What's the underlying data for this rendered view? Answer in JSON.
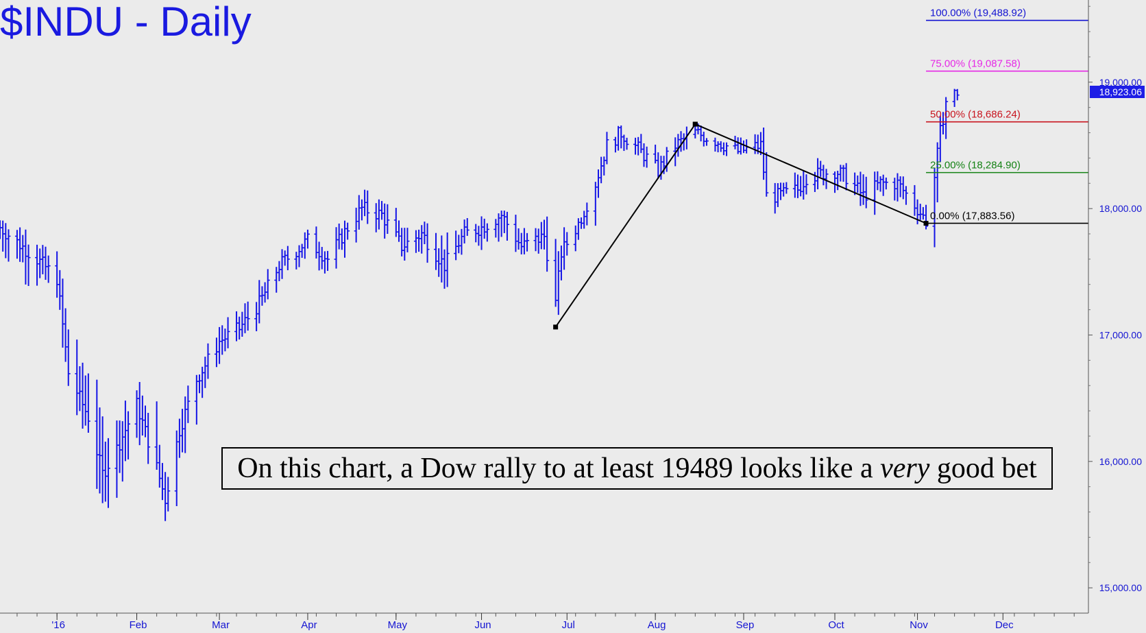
{
  "title": "$INDU - Daily",
  "annotation": {
    "before": "On this chart, a Dow rally to at least 19489 looks like a ",
    "emphasis": "very",
    "after": " good bet"
  },
  "last_price_label": "18,923.06",
  "chart_data": {
    "type": "bar",
    "subtype": "ohlc",
    "title": "$INDU - Daily",
    "xlabel": "",
    "ylabel": "",
    "ylim": [
      14800,
      19650
    ],
    "yticks": [
      "15,000.00",
      "16,000.00",
      "17,000.00",
      "18,000.00",
      "19,000.00"
    ],
    "ytick_values": [
      15000,
      16000,
      17000,
      18000,
      19000
    ],
    "xticks": [
      "'16",
      "Feb",
      "Mar",
      "Apr",
      "May",
      "Jun",
      "Jul",
      "Aug",
      "Sep",
      "Oct",
      "Nov",
      "Dec"
    ],
    "xtick_dates": [
      "2016-01-04",
      "2016-02-01",
      "2016-03-01",
      "2016-04-01",
      "2016-05-02",
      "2016-06-01",
      "2016-07-01",
      "2016-08-01",
      "2016-09-01",
      "2016-10-03",
      "2016-11-01",
      "2016-12-01"
    ],
    "xlim": [
      "2015-12-15",
      "2016-12-31"
    ],
    "series": [
      {
        "dates": [
          "2015-12-15",
          "2015-12-28",
          "2016-01-04",
          "2016-01-08",
          "2016-01-15",
          "2016-01-20",
          "2016-01-25",
          "2016-02-01",
          "2016-02-08",
          "2016-02-11",
          "2016-02-16",
          "2016-02-22",
          "2016-03-01",
          "2016-03-08",
          "2016-03-15",
          "2016-03-22",
          "2016-04-01",
          "2016-04-08",
          "2016-04-15",
          "2016-04-20",
          "2016-04-27",
          "2016-05-04",
          "2016-05-11",
          "2016-05-19",
          "2016-05-26",
          "2016-06-01",
          "2016-06-08",
          "2016-06-15",
          "2016-06-23",
          "2016-06-27",
          "2016-06-29",
          "2016-07-05",
          "2016-07-11",
          "2016-07-15",
          "2016-07-20",
          "2016-07-27",
          "2016-08-02",
          "2016-08-08",
          "2016-08-15",
          "2016-08-22",
          "2016-08-30",
          "2016-09-07",
          "2016-09-09",
          "2016-09-13",
          "2016-09-20",
          "2016-09-23",
          "2016-10-03",
          "2016-10-07",
          "2016-10-13",
          "2016-10-19",
          "2016-10-25",
          "2016-11-01",
          "2016-11-04",
          "2016-11-07",
          "2016-11-09",
          "2016-11-11",
          "2016-11-15"
        ],
        "close": [
          17850,
          17600,
          17450,
          16700,
          16350,
          15900,
          16100,
          16450,
          15950,
          15700,
          16250,
          16650,
          16950,
          17050,
          17250,
          17550,
          17750,
          17600,
          17850,
          18000,
          17950,
          17700,
          17800,
          17550,
          17800,
          17850,
          17950,
          17700,
          17780,
          17250,
          17650,
          17880,
          18200,
          18500,
          18600,
          18450,
          18300,
          18500,
          18600,
          18540,
          18450,
          18500,
          18100,
          18100,
          18150,
          18250,
          18300,
          18250,
          18100,
          18200,
          18200,
          18000,
          17900,
          18250,
          18600,
          18850,
          18923.06
        ],
        "high": [
          17950,
          17800,
          17600,
          17100,
          16800,
          16400,
          16550,
          16600,
          16450,
          16000,
          16500,
          16800,
          17100,
          17200,
          17450,
          17650,
          17850,
          17750,
          17950,
          18170,
          18100,
          17900,
          17950,
          17800,
          17900,
          18000,
          18020,
          17850,
          18000,
          17500,
          17850,
          17950,
          18300,
          18600,
          18630,
          18550,
          18400,
          18620,
          18660,
          18600,
          18550,
          18600,
          18300,
          18200,
          18300,
          18450,
          18350,
          18330,
          18300,
          18280,
          18280,
          18100,
          18050,
          18350,
          18800,
          18930,
          18940
        ],
        "low": [
          17600,
          17300,
          17200,
          16400,
          16100,
          15450,
          15800,
          16100,
          15800,
          15500,
          16000,
          16400,
          16800,
          16950,
          17050,
          17400,
          17600,
          17450,
          17700,
          17850,
          17800,
          17600,
          17600,
          17350,
          17650,
          17700,
          17750,
          17550,
          17600,
          17100,
          17500,
          17800,
          18050,
          18400,
          18450,
          18350,
          18250,
          18350,
          18500,
          18450,
          18400,
          18420,
          18000,
          17980,
          18050,
          18150,
          18150,
          18100,
          17950,
          18050,
          18050,
          17900,
          17850,
          18000,
          18300,
          18700,
          18850
        ]
      }
    ],
    "trend_lines": [
      {
        "from": {
          "date": "2016-06-27",
          "value": 17063
        },
        "to": {
          "date": "2016-08-15",
          "value": 18668
        }
      },
      {
        "from": {
          "date": "2016-08-15",
          "value": 18668
        },
        "to": {
          "date": "2016-11-04",
          "value": 17883.56
        }
      }
    ],
    "fib_levels": [
      {
        "label": "100.00% (19,488.92)",
        "value": 19488.92,
        "color": "#1414d2"
      },
      {
        "label": "75.00% (19,087.58)",
        "value": 19087.58,
        "color": "#e629e6"
      },
      {
        "label": "50.00% (18,686.24)",
        "value": 18686.24,
        "color": "#c8141e"
      },
      {
        "label": "25.00% (18,284.90)",
        "value": 18284.9,
        "color": "#148214"
      },
      {
        "label": "0.00% (17,883.56)",
        "value": 17883.56,
        "color": "#000000"
      }
    ],
    "fib_start_date": "2016-11-04",
    "last_price": 18923.06,
    "grid": false,
    "legend": "none"
  },
  "colors": {
    "price_bars": "#1414e6",
    "axis_labels": "#1414d2",
    "last_price_bg": "#1e1ee6",
    "background": "#ebebeb"
  }
}
